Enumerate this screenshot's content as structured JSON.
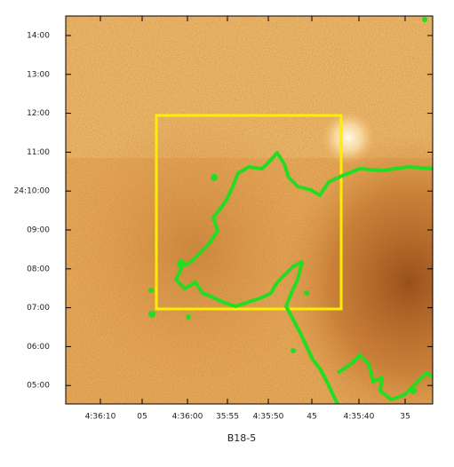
{
  "x_axis": {
    "labels": [
      "4:36:10",
      "05",
      "4:36:00",
      "35:55",
      "4:35:50",
      "45",
      "4:35:40",
      "35"
    ],
    "title": "B18-5"
  },
  "y_axis": {
    "labels": [
      "14:00",
      "13:00",
      "12:00",
      "11:00",
      "24:10:00",
      "09:00",
      "08:00",
      "07:00",
      "06:00",
      "05:00"
    ]
  }
}
